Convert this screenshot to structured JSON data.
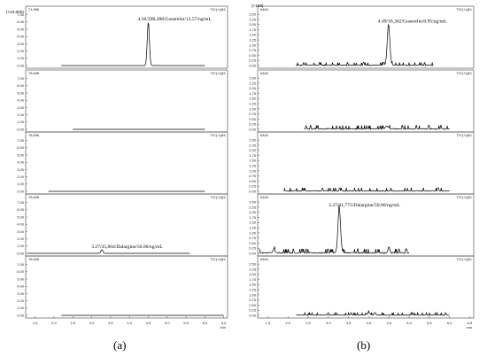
{
  "chart_data": [
    {
      "type": "line",
      "figure_label": "(a)",
      "y_scale_label": "(×10,000)",
      "x_axis": {
        "range": [
          1.25,
          6.6
        ],
        "ticks": [
          "1.5",
          "2.0",
          "2.5",
          "3.0",
          "3.5",
          "4.0",
          "4.5",
          "5.0",
          "5.5",
          "6.0",
          "6.5"
        ],
        "unit_label": "min"
      },
      "panels": [
        {
          "count_label": "71,996",
          "channel_label": "TIC(+)@1",
          "y_ticks": [
            "0.00",
            "1.00",
            "2.00",
            "3.00",
            "4.00",
            "5.00",
            "6.00",
            "7.00"
          ],
          "ymax": 7.2,
          "baseline_x": [
            2.2,
            6.0
          ],
          "noise": 0.0,
          "peaks": [
            {
              "x": 4.5,
              "height": 6.0,
              "width": 0.04
            }
          ],
          "annotation": "4.50/298,288/Goserelin/13.57/ng/mL"
        },
        {
          "count_label": "78,696",
          "channel_label": "TIC(+)@1",
          "y_ticks": [
            "0.00",
            "1.00",
            "2.00",
            "3.00",
            "4.00",
            "5.00",
            "6.00",
            "7.00"
          ],
          "ymax": 7.2,
          "baseline_x": [
            2.5,
            6.0
          ],
          "noise": 0.0,
          "peaks": []
        },
        {
          "count_label": "78,696",
          "channel_label": "TIC(+)@1",
          "y_ticks": [
            "0.00",
            "1.00",
            "2.00",
            "3.00",
            "4.00",
            "5.00",
            "6.00",
            "7.00"
          ],
          "ymax": 7.2,
          "baseline_x": [
            1.85,
            6.0
          ],
          "noise": 0.0,
          "peaks": []
        },
        {
          "count_label": "78,696",
          "channel_label": "TIC(+)@1",
          "y_ticks": [
            "0.00",
            "1.00",
            "2.00",
            "3.00",
            "4.00",
            "5.00",
            "6.00",
            "7.00"
          ],
          "ymax": 7.2,
          "baseline_x": [
            1.3,
            5.6
          ],
          "noise": 0.0,
          "peaks": [
            {
              "x": 3.27,
              "height": 0.5,
              "width": 0.04
            }
          ],
          "annotation": "3.27/35,804/Dalargine/50.00/ng/mL"
        },
        {
          "count_label": "78,696",
          "channel_label": "TIC(+)@1",
          "y_ticks": [
            "0.00",
            "1.00",
            "2.00",
            "3.00",
            "4.00",
            "5.00",
            "6.00",
            "7.00"
          ],
          "ymax": 7.2,
          "baseline_x": [
            2.2,
            6.5
          ],
          "noise": 0.0,
          "peaks": []
        }
      ]
    },
    {
      "type": "line",
      "figure_label": "(b)",
      "y_scale_label": "(×100)",
      "x_axis": {
        "range": [
          1.25,
          6.6
        ],
        "ticks": [
          "1.5",
          "2.0",
          "2.5",
          "3.0",
          "3.5",
          "4.0",
          "4.5",
          "5.0",
          "5.5",
          "6.0",
          "6.5"
        ],
        "unit_label": "min"
      },
      "panels": [
        {
          "count_label": "6464",
          "channel_label": "TIC(+)@1",
          "y_ticks": [
            "0.00",
            "0.25",
            "0.50",
            "0.75",
            "1.00",
            "1.25",
            "1.50",
            "1.75",
            "2.00",
            "2.25",
            "2.50"
          ],
          "ymax": 2.55,
          "baseline_x": [
            2.2,
            5.6
          ],
          "noise": 0.07,
          "peaks": [
            {
              "x": 4.49,
              "height": 2.0,
              "width": 0.045
            }
          ],
          "annotation": "4.49/18,362/Goserelin/0.95/ng/mL"
        },
        {
          "count_label": "6464",
          "channel_label": "TIC(+)@1",
          "y_ticks": [
            "0.00",
            "0.25",
            "0.50",
            "0.75",
            "1.00",
            "1.25",
            "1.50",
            "1.75",
            "2.00",
            "2.25",
            "2.50"
          ],
          "ymax": 2.55,
          "baseline_x": [
            2.4,
            6.0
          ],
          "noise": 0.09,
          "peaks": [
            {
              "x": 4.45,
              "height": 0.12,
              "width": 0.05
            }
          ]
        },
        {
          "count_label": "6464",
          "channel_label": "TIC(+)@1",
          "y_ticks": [
            "0.00",
            "0.25",
            "0.50",
            "0.75",
            "1.00",
            "1.25",
            "1.50",
            "1.75",
            "2.00",
            "2.25",
            "2.50"
          ],
          "ymax": 2.55,
          "baseline_x": [
            1.9,
            6.0
          ],
          "noise": 0.08,
          "peaks": []
        },
        {
          "count_label": "6464",
          "channel_label": "TIC(+)@1",
          "y_ticks": [
            "0.00",
            "0.25",
            "0.50",
            "0.75",
            "1.00",
            "1.25",
            "1.50",
            "1.75",
            "2.00",
            "2.25",
            "2.50"
          ],
          "ymax": 2.55,
          "baseline_x": [
            1.3,
            5.0
          ],
          "noise": 0.1,
          "peaks": [
            {
              "x": 3.27,
              "height": 2.2,
              "width": 0.045
            },
            {
              "x": 4.5,
              "height": 0.3,
              "width": 0.03
            },
            {
              "x": 1.65,
              "height": 0.2,
              "width": 0.03
            }
          ],
          "annotation": "3.27/31,773/Dalargine/50.00/ng/mL"
        },
        {
          "count_label": "6464",
          "channel_label": "TIC(+)@1",
          "y_ticks": [
            "0.00",
            "0.25",
            "0.50",
            "0.75",
            "1.00",
            "1.25",
            "1.50",
            "1.75",
            "2.00",
            "2.25",
            "2.50"
          ],
          "ymax": 2.55,
          "baseline_x": [
            2.2,
            6.0
          ],
          "noise": 0.06,
          "peaks": [
            {
              "x": 4.0,
              "height": 0.12,
              "width": 0.04
            }
          ]
        }
      ]
    }
  ]
}
